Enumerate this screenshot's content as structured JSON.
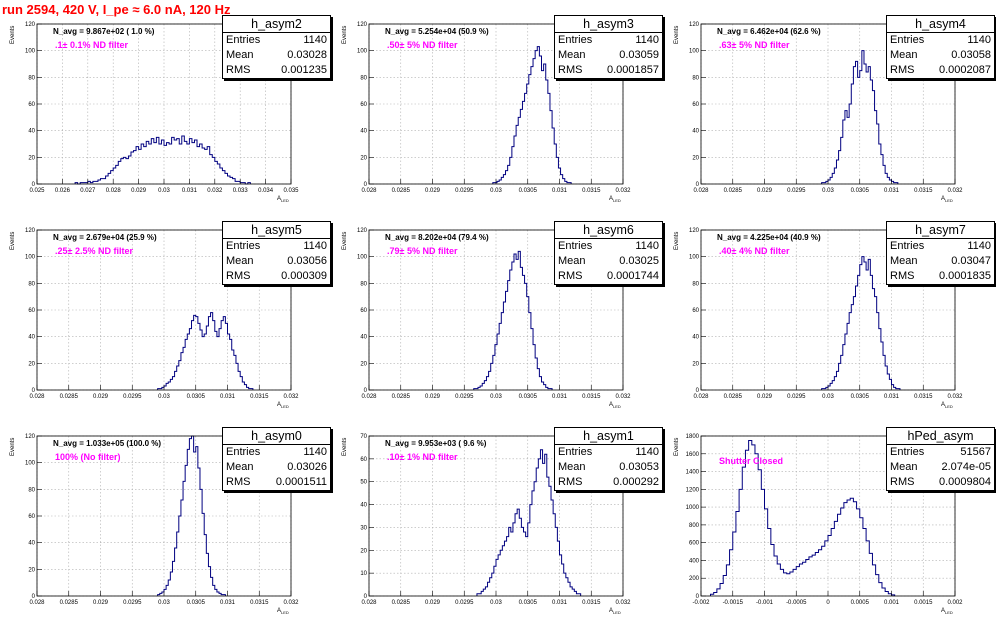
{
  "page_title": "run 2594,   420 V, I_pe ≈ 6.0 nA, 120 Hz",
  "stats_labels": {
    "entries": "Entries",
    "mean": "Mean",
    "rms": "RMS"
  },
  "colors": {
    "histogram": "#000080",
    "annotation": "#ff00ff",
    "title": "#ff0000",
    "grid": "#b0b0b0"
  },
  "chart_data": [
    {
      "type": "histogram",
      "name": "h_asym2",
      "entries": "1140",
      "mean": "0.03028",
      "rms": "0.001235",
      "n_avg": "N_avg = 9.867e+02 ( 1.0 %)",
      "filter": ".1± 0.1% ND filter",
      "xlabel": "A",
      "xlabel_sub": "LED",
      "ylabel": "Events",
      "xlim": [
        0.025,
        0.035
      ],
      "ylim": [
        0,
        120
      ],
      "grid": true,
      "xticks": [
        0.025,
        0.026,
        0.027,
        0.028,
        0.029,
        0.03,
        0.031,
        0.032,
        0.033,
        0.034,
        0.035
      ],
      "xtick_labels": [
        "0.025",
        "0.026",
        "0.027",
        "0.028",
        "0.029",
        "0.03",
        "0.031",
        "0.032",
        "0.033",
        "0.034",
        "0.035"
      ],
      "yticks": [
        0,
        20,
        40,
        60,
        80,
        100,
        120
      ],
      "values_start": 0.0265,
      "bin_width": 0.0001,
      "values": [
        1,
        0,
        1,
        1,
        1,
        2,
        1,
        2,
        2,
        3,
        4,
        4,
        6,
        8,
        10,
        12,
        14,
        17,
        19,
        20,
        19,
        21,
        24,
        25,
        28,
        26,
        30,
        28,
        32,
        30,
        34,
        31,
        35,
        30,
        33,
        29,
        31,
        30,
        35,
        33,
        34,
        30,
        36,
        32,
        30,
        34,
        31,
        33,
        28,
        30,
        27,
        26,
        28,
        22,
        20,
        17,
        15,
        12,
        10,
        8,
        6,
        5,
        4,
        2,
        2,
        1,
        1,
        0,
        1
      ]
    },
    {
      "type": "histogram",
      "name": "h_asym3",
      "entries": "1140",
      "mean": "0.03059",
      "rms": "0.0001857",
      "n_avg": "N_avg = 5.254e+04 (50.9 %)",
      "filter": ".50± 5% ND filter",
      "xlabel": "A",
      "xlabel_sub": "LED",
      "ylabel": "Events",
      "xlim": [
        0.028,
        0.032
      ],
      "ylim": [
        0,
        120
      ],
      "grid": true,
      "xticks": [
        0.028,
        0.0285,
        0.029,
        0.0295,
        0.03,
        0.0305,
        0.031,
        0.0315,
        0.032
      ],
      "xtick_labels": [
        "0.028",
        "0.0285",
        "0.029",
        "0.0295",
        "0.03",
        "0.0305",
        "0.031",
        "0.0315",
        "0.032"
      ],
      "yticks": [
        0,
        20,
        40,
        60,
        80,
        100,
        120
      ],
      "values_start": 0.02995,
      "bin_width": 3.333e-05,
      "values": [
        1,
        1,
        2,
        3,
        5,
        7,
        10,
        14,
        20,
        28,
        36,
        44,
        50,
        56,
        62,
        68,
        75,
        82,
        88,
        94,
        100,
        103,
        96,
        85,
        90,
        78,
        68,
        55,
        42,
        30,
        20,
        12,
        7,
        4,
        2,
        1,
        1
      ]
    },
    {
      "type": "histogram",
      "name": "h_asym4",
      "entries": "1140",
      "mean": "0.03058",
      "rms": "0.0002087",
      "n_avg": "N_avg = 6.462e+04 (62.6 %)",
      "filter": ".63± 5% ND filter",
      "xlabel": "A",
      "xlabel_sub": "LED",
      "ylabel": "Events",
      "xlim": [
        0.028,
        0.032
      ],
      "ylim": [
        0,
        120
      ],
      "grid": true,
      "xticks": [
        0.028,
        0.0285,
        0.029,
        0.0295,
        0.03,
        0.0305,
        0.031,
        0.0315,
        0.032
      ],
      "xtick_labels": [
        "0.028",
        "0.0285",
        "0.029",
        "0.0295",
        "0.03",
        "0.0305",
        "0.031",
        "0.0315",
        "0.032"
      ],
      "yticks": [
        0,
        20,
        40,
        60,
        80,
        100,
        120
      ],
      "values_start": 0.0299,
      "bin_width": 3.333e-05,
      "values": [
        1,
        1,
        2,
        3,
        5,
        8,
        12,
        18,
        25,
        35,
        48,
        55,
        50,
        60,
        75,
        88,
        92,
        80,
        85,
        100,
        90,
        84,
        88,
        78,
        70,
        55,
        45,
        30,
        22,
        14,
        8,
        5,
        3,
        2,
        1,
        1
      ]
    },
    {
      "type": "histogram",
      "name": "h_asym5",
      "entries": "1140",
      "mean": "0.03056",
      "rms": "0.000309",
      "n_avg": "N_avg = 2.679e+04 (25.9 %)",
      "filter": ".25± 2.5% ND filter",
      "xlabel": "A",
      "xlabel_sub": "LED",
      "ylabel": "Events",
      "xlim": [
        0.028,
        0.032
      ],
      "ylim": [
        0,
        120
      ],
      "grid": true,
      "xticks": [
        0.028,
        0.0285,
        0.029,
        0.0295,
        0.03,
        0.0305,
        0.031,
        0.0315,
        0.032
      ],
      "xtick_labels": [
        "0.028",
        "0.0285",
        "0.029",
        "0.0295",
        "0.03",
        "0.0305",
        "0.031",
        "0.0315",
        "0.032"
      ],
      "yticks": [
        0,
        20,
        40,
        60,
        80,
        100,
        120
      ],
      "values_start": 0.0299,
      "bin_width": 3.333e-05,
      "values": [
        1,
        1,
        2,
        3,
        5,
        6,
        8,
        10,
        14,
        18,
        22,
        28,
        32,
        38,
        42,
        46,
        52,
        56,
        55,
        50,
        45,
        40,
        42,
        48,
        55,
        58,
        52,
        44,
        40,
        46,
        52,
        55,
        50,
        42,
        38,
        30,
        26,
        20,
        14,
        10,
        6,
        4,
        2,
        1,
        1
      ]
    },
    {
      "type": "histogram",
      "name": "h_asym6",
      "entries": "1140",
      "mean": "0.03025",
      "rms": "0.0001744",
      "n_avg": "N_avg = 8.202e+04 (79.4 %)",
      "filter": ".79± 5% ND filter",
      "xlabel": "A",
      "xlabel_sub": "LED",
      "ylabel": "Events",
      "xlim": [
        0.028,
        0.032
      ],
      "ylim": [
        0,
        120
      ],
      "grid": true,
      "xticks": [
        0.028,
        0.0285,
        0.029,
        0.0295,
        0.03,
        0.0305,
        0.031,
        0.0315,
        0.032
      ],
      "xtick_labels": [
        "0.028",
        "0.0285",
        "0.029",
        "0.0295",
        "0.03",
        "0.0305",
        "0.031",
        "0.0315",
        "0.032"
      ],
      "yticks": [
        0,
        20,
        40,
        60,
        80,
        100,
        120
      ],
      "values_start": 0.02965,
      "bin_width": 3.333e-05,
      "values": [
        1,
        1,
        2,
        3,
        5,
        7,
        10,
        14,
        20,
        26,
        34,
        42,
        50,
        58,
        66,
        74,
        82,
        90,
        96,
        102,
        98,
        104,
        92,
        86,
        80,
        70,
        58,
        46,
        34,
        24,
        16,
        10,
        6,
        4,
        2,
        1,
        1
      ]
    },
    {
      "type": "histogram",
      "name": "h_asym7",
      "entries": "1140",
      "mean": "0.03047",
      "rms": "0.0001835",
      "n_avg": "N_avg = 4.225e+04 (40.9 %)",
      "filter": ".40± 4% ND filter",
      "xlabel": "A",
      "xlabel_sub": "LED",
      "ylabel": "Events",
      "xlim": [
        0.028,
        0.032
      ],
      "ylim": [
        0,
        120
      ],
      "grid": true,
      "xticks": [
        0.028,
        0.0285,
        0.029,
        0.0295,
        0.03,
        0.0305,
        0.031,
        0.0315,
        0.032
      ],
      "xtick_labels": [
        "0.028",
        "0.0285",
        "0.029",
        "0.0295",
        "0.03",
        "0.0305",
        "0.031",
        "0.0315",
        "0.032"
      ],
      "yticks": [
        0,
        20,
        40,
        60,
        80,
        100,
        120
      ],
      "values_start": 0.0299,
      "bin_width": 3.333e-05,
      "values": [
        1,
        1,
        2,
        3,
        5,
        7,
        10,
        14,
        20,
        26,
        34,
        42,
        50,
        58,
        64,
        70,
        78,
        86,
        94,
        100,
        96,
        90,
        98,
        86,
        76,
        70,
        58,
        46,
        36,
        26,
        18,
        12,
        8,
        4,
        2,
        1,
        1
      ]
    },
    {
      "type": "histogram",
      "name": "h_asym0",
      "entries": "1140",
      "mean": "0.03026",
      "rms": "0.0001511",
      "n_avg": "N_avg = 1.033e+05 (100.0 %)",
      "filter": "100% (No filter)",
      "xlabel": "A",
      "xlabel_sub": "LED",
      "ylabel": "Events",
      "xlim": [
        0.028,
        0.032
      ],
      "ylim": [
        0,
        120
      ],
      "grid": true,
      "xticks": [
        0.028,
        0.0285,
        0.029,
        0.0295,
        0.03,
        0.0305,
        0.031,
        0.0315,
        0.032
      ],
      "xtick_labels": [
        "0.028",
        "0.0285",
        "0.029",
        "0.0295",
        "0.03",
        "0.0305",
        "0.031",
        "0.0315",
        "0.032"
      ],
      "yticks": [
        0,
        20,
        40,
        60,
        80,
        100,
        120
      ],
      "values_start": 0.0299,
      "bin_width": 3.333e-05,
      "values": [
        1,
        2,
        3,
        5,
        8,
        12,
        18,
        26,
        36,
        48,
        60,
        72,
        86,
        98,
        110,
        118,
        122,
        108,
        112,
        96,
        80,
        62,
        46,
        32,
        22,
        14,
        8,
        5,
        3,
        2,
        1,
        1
      ]
    },
    {
      "type": "histogram",
      "name": "h_asym1",
      "entries": "1140",
      "mean": "0.03053",
      "rms": "0.000292",
      "n_avg": "N_avg = 9.953e+03 ( 9.6 %)",
      "filter": ".10± 1% ND filter",
      "xlabel": "A",
      "xlabel_sub": "LED",
      "ylabel": "Events",
      "xlim": [
        0.028,
        0.032
      ],
      "ylim": [
        0,
        70
      ],
      "grid": true,
      "xticks": [
        0.028,
        0.0285,
        0.029,
        0.0295,
        0.03,
        0.0305,
        0.031,
        0.0315,
        0.032
      ],
      "xtick_labels": [
        "0.028",
        "0.0285",
        "0.029",
        "0.0295",
        "0.03",
        "0.0305",
        "0.031",
        "0.0315",
        "0.032"
      ],
      "yticks": [
        0,
        10,
        20,
        30,
        40,
        50,
        60,
        70
      ],
      "values_start": 0.0297,
      "bin_width": 3.333e-05,
      "values": [
        1,
        1,
        2,
        3,
        4,
        6,
        8,
        10,
        13,
        16,
        18,
        20,
        22,
        24,
        26,
        30,
        28,
        32,
        36,
        38,
        34,
        30,
        28,
        26,
        32,
        40,
        46,
        50,
        56,
        60,
        64,
        58,
        62,
        52,
        48,
        42,
        36,
        30,
        24,
        18,
        14,
        10,
        8,
        6,
        4,
        3,
        2,
        1,
        1
      ]
    },
    {
      "type": "histogram",
      "name": "hPed_asym",
      "entries": "51567",
      "mean": "2.074e-05",
      "rms": "0.0009804",
      "n_avg": "",
      "filter": "Shutter Closed",
      "xlabel": "A",
      "xlabel_sub": "LED",
      "ylabel": "Events",
      "xlim": [
        -0.002,
        0.002
      ],
      "ylim": [
        0,
        1800
      ],
      "grid": true,
      "xticks": [
        -0.002,
        -0.0015,
        -0.001,
        -0.0005,
        0,
        0.0005,
        0.001,
        0.0015,
        0.002
      ],
      "xtick_labels": [
        "-0.002",
        "-0.0015",
        "-0.001",
        "-0.0005",
        "0",
        "0.0005",
        "0.001",
        "0.0015",
        "0.002"
      ],
      "yticks": [
        0,
        200,
        400,
        600,
        800,
        1000,
        1200,
        1400,
        1600,
        1800
      ],
      "values_start": -0.00185,
      "bin_width": 5e-05,
      "values": [
        20,
        40,
        80,
        140,
        230,
        350,
        520,
        720,
        950,
        1200,
        1450,
        1640,
        1750,
        1700,
        1600,
        1420,
        1200,
        980,
        760,
        580,
        450,
        360,
        300,
        260,
        250,
        270,
        300,
        330,
        360,
        380,
        410,
        440,
        460,
        490,
        520,
        560,
        620,
        680,
        760,
        840,
        920,
        990,
        1050,
        1080,
        1100,
        1060,
        980,
        880,
        760,
        620,
        480,
        350,
        240,
        150,
        90,
        50,
        25,
        12
      ]
    }
  ]
}
